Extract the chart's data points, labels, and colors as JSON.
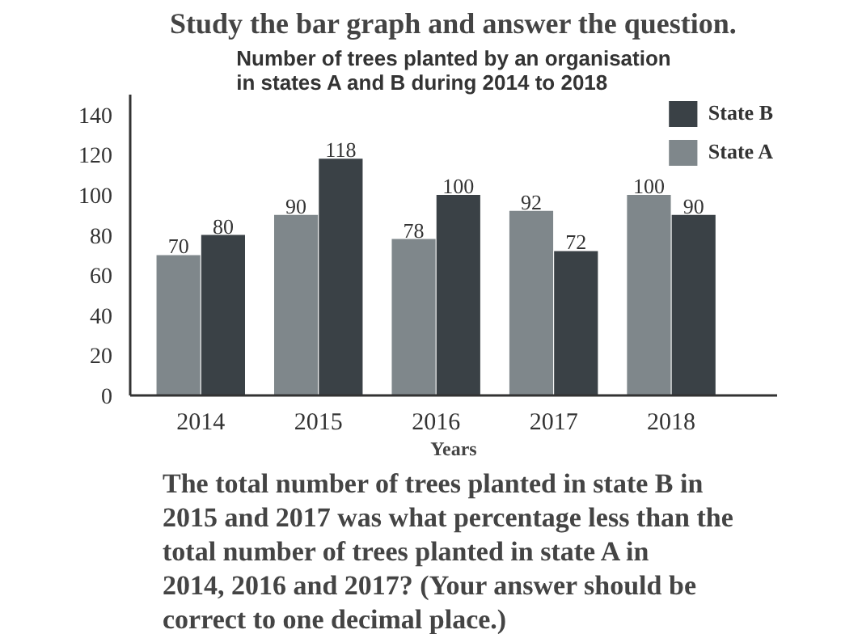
{
  "chart_data": {
    "type": "bar",
    "title": "Study the bar graph and answer the question.",
    "subtitle": "Number of trees planted by an organisation\nin states A and B during 2014 to 2018",
    "xlabel": "Years",
    "categories": [
      "2014",
      "2015",
      "2016",
      "2017",
      "2018"
    ],
    "series": [
      {
        "name": "State A",
        "color": "#7f878b",
        "values": [
          70,
          90,
          78,
          92,
          100
        ]
      },
      {
        "name": "State B",
        "color": "#3a4146",
        "values": [
          80,
          118,
          100,
          72,
          90
        ]
      }
    ],
    "ylim": [
      0,
      150
    ],
    "yticks": [
      0,
      20,
      40,
      60,
      80,
      100,
      120,
      140
    ],
    "data_labels": true,
    "legend": "top right",
    "annotations": [
      "The total number of trees planted in state B in 2015 and 2017 was what percentage less than the total number of trees planted in state A in 2014, 2016 and 2017? (Your answer should be correct to one decimal place.)"
    ]
  }
}
